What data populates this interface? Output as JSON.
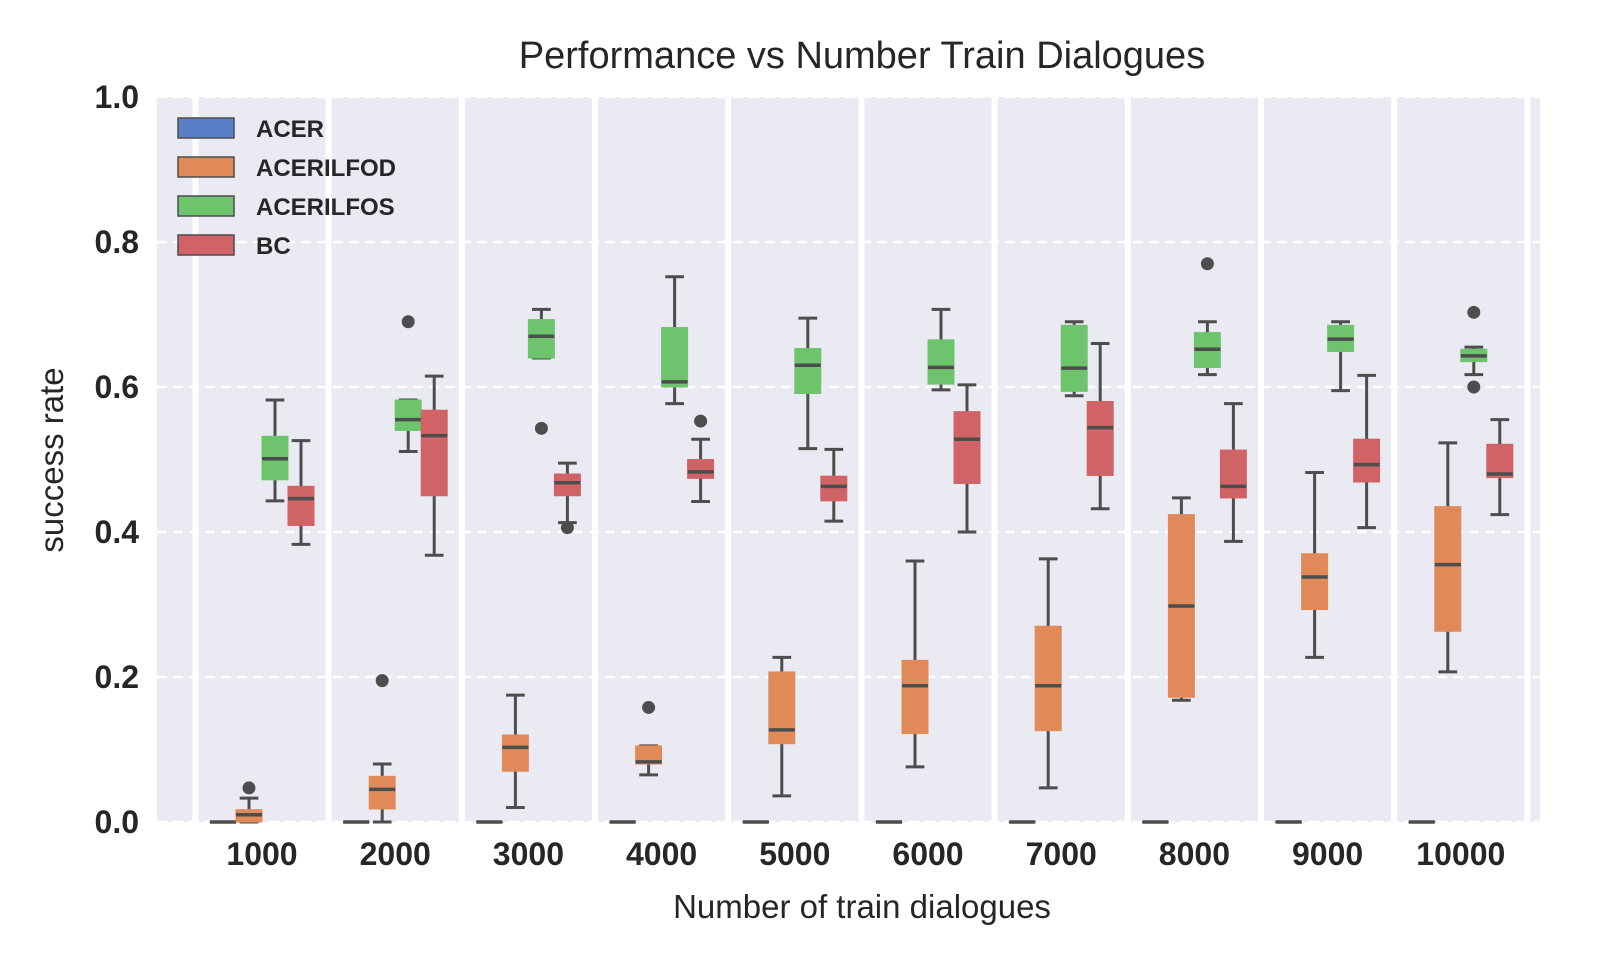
{
  "chart_data": {
    "type": "box",
    "title": "Performance vs Number Train Dialogues",
    "xlabel": "Number of train dialogues",
    "ylabel": "success rate",
    "ylim": [
      0.0,
      1.0
    ],
    "yticks": [
      "0.0",
      "0.2",
      "0.4",
      "0.6",
      "0.8",
      "1.0"
    ],
    "grid": "horizontal dashed",
    "legend_position": "top-left",
    "categories": [
      "1000",
      "2000",
      "3000",
      "4000",
      "5000",
      "6000",
      "7000",
      "8000",
      "9000",
      "10000"
    ],
    "series": [
      {
        "name": "ACER",
        "color": "#5a7fc8",
        "boxes": [
          {
            "min": 0,
            "q1": 0,
            "median": 0,
            "q3": 0,
            "max": 0,
            "outliers": []
          },
          {
            "min": 0,
            "q1": 0,
            "median": 0,
            "q3": 0,
            "max": 0,
            "outliers": []
          },
          {
            "min": 0,
            "q1": 0,
            "median": 0,
            "q3": 0,
            "max": 0,
            "outliers": []
          },
          {
            "min": 0,
            "q1": 0,
            "median": 0,
            "q3": 0,
            "max": 0,
            "outliers": []
          },
          {
            "min": 0,
            "q1": 0,
            "median": 0,
            "q3": 0,
            "max": 0,
            "outliers": []
          },
          {
            "min": 0,
            "q1": 0,
            "median": 0,
            "q3": 0,
            "max": 0,
            "outliers": []
          },
          {
            "min": 0,
            "q1": 0,
            "median": 0,
            "q3": 0,
            "max": 0,
            "outliers": []
          },
          {
            "min": 0,
            "q1": 0,
            "median": 0,
            "q3": 0,
            "max": 0,
            "outliers": []
          },
          {
            "min": 0,
            "q1": 0,
            "median": 0,
            "q3": 0,
            "max": 0,
            "outliers": []
          },
          {
            "min": 0,
            "q1": 0,
            "median": 0,
            "q3": 0,
            "max": 0,
            "outliers": []
          }
        ]
      },
      {
        "name": "ACERILFOD",
        "color": "#e08a5a",
        "boxes": [
          {
            "min": 0.0,
            "q1": 0.0,
            "median": 0.01,
            "q3": 0.017,
            "max": 0.033,
            "outliers": [
              0.047
            ]
          },
          {
            "min": 0.0,
            "q1": 0.018,
            "median": 0.045,
            "q3": 0.063,
            "max": 0.08,
            "outliers": [
              0.195
            ]
          },
          {
            "min": 0.02,
            "q1": 0.07,
            "median": 0.103,
            "q3": 0.12,
            "max": 0.175,
            "outliers": []
          },
          {
            "min": 0.065,
            "q1": 0.08,
            "median": 0.083,
            "q3": 0.105,
            "max": 0.105,
            "outliers": [
              0.158
            ]
          },
          {
            "min": 0.036,
            "q1": 0.108,
            "median": 0.127,
            "q3": 0.207,
            "max": 0.227,
            "outliers": []
          },
          {
            "min": 0.076,
            "q1": 0.122,
            "median": 0.188,
            "q3": 0.223,
            "max": 0.36,
            "outliers": []
          },
          {
            "min": 0.047,
            "q1": 0.126,
            "median": 0.188,
            "q3": 0.27,
            "max": 0.363,
            "outliers": []
          },
          {
            "min": 0.168,
            "q1": 0.172,
            "median": 0.298,
            "q3": 0.424,
            "max": 0.447,
            "outliers": []
          },
          {
            "min": 0.227,
            "q1": 0.293,
            "median": 0.338,
            "q3": 0.37,
            "max": 0.482,
            "outliers": []
          },
          {
            "min": 0.207,
            "q1": 0.263,
            "median": 0.355,
            "q3": 0.435,
            "max": 0.523,
            "outliers": []
          }
        ]
      },
      {
        "name": "ACERILFOS",
        "color": "#6dc46d",
        "boxes": [
          {
            "min": 0.443,
            "q1": 0.472,
            "median": 0.501,
            "q3": 0.532,
            "max": 0.582,
            "outliers": []
          },
          {
            "min": 0.511,
            "q1": 0.54,
            "median": 0.555,
            "q3": 0.582,
            "max": 0.582,
            "outliers": [
              0.69
            ]
          },
          {
            "min": 0.64,
            "q1": 0.64,
            "median": 0.67,
            "q3": 0.693,
            "max": 0.707,
            "outliers": [
              0.543
            ]
          },
          {
            "min": 0.577,
            "q1": 0.6,
            "median": 0.607,
            "q3": 0.682,
            "max": 0.752,
            "outliers": []
          },
          {
            "min": 0.515,
            "q1": 0.591,
            "median": 0.63,
            "q3": 0.653,
            "max": 0.695,
            "outliers": []
          },
          {
            "min": 0.596,
            "q1": 0.604,
            "median": 0.627,
            "q3": 0.665,
            "max": 0.707,
            "outliers": []
          },
          {
            "min": 0.588,
            "q1": 0.594,
            "median": 0.626,
            "q3": 0.685,
            "max": 0.69,
            "outliers": []
          },
          {
            "min": 0.617,
            "q1": 0.627,
            "median": 0.652,
            "q3": 0.675,
            "max": 0.69,
            "outliers": [
              0.77
            ]
          },
          {
            "min": 0.595,
            "q1": 0.649,
            "median": 0.666,
            "q3": 0.685,
            "max": 0.69,
            "outliers": []
          },
          {
            "min": 0.617,
            "q1": 0.635,
            "median": 0.643,
            "q3": 0.652,
            "max": 0.655,
            "outliers": [
              0.703,
              0.6
            ]
          }
        ]
      },
      {
        "name": "BC",
        "color": "#cf6366",
        "boxes": [
          {
            "min": 0.383,
            "q1": 0.409,
            "median": 0.446,
            "q3": 0.463,
            "max": 0.526,
            "outliers": []
          },
          {
            "min": 0.368,
            "q1": 0.45,
            "median": 0.533,
            "q3": 0.568,
            "max": 0.615,
            "outliers": []
          },
          {
            "min": 0.413,
            "q1": 0.45,
            "median": 0.468,
            "q3": 0.48,
            "max": 0.495,
            "outliers": [
              0.406
            ]
          },
          {
            "min": 0.442,
            "q1": 0.474,
            "median": 0.483,
            "q3": 0.5,
            "max": 0.528,
            "outliers": [
              0.553
            ]
          },
          {
            "min": 0.415,
            "q1": 0.443,
            "median": 0.463,
            "q3": 0.477,
            "max": 0.514,
            "outliers": []
          },
          {
            "min": 0.4,
            "q1": 0.467,
            "median": 0.528,
            "q3": 0.566,
            "max": 0.603,
            "outliers": []
          },
          {
            "min": 0.432,
            "q1": 0.478,
            "median": 0.544,
            "q3": 0.58,
            "max": 0.66,
            "outliers": []
          },
          {
            "min": 0.387,
            "q1": 0.447,
            "median": 0.463,
            "q3": 0.513,
            "max": 0.577,
            "outliers": []
          },
          {
            "min": 0.406,
            "q1": 0.469,
            "median": 0.493,
            "q3": 0.528,
            "max": 0.616,
            "outliers": []
          },
          {
            "min": 0.424,
            "q1": 0.475,
            "median": 0.48,
            "q3": 0.521,
            "max": 0.555,
            "outliers": []
          }
        ]
      }
    ]
  }
}
